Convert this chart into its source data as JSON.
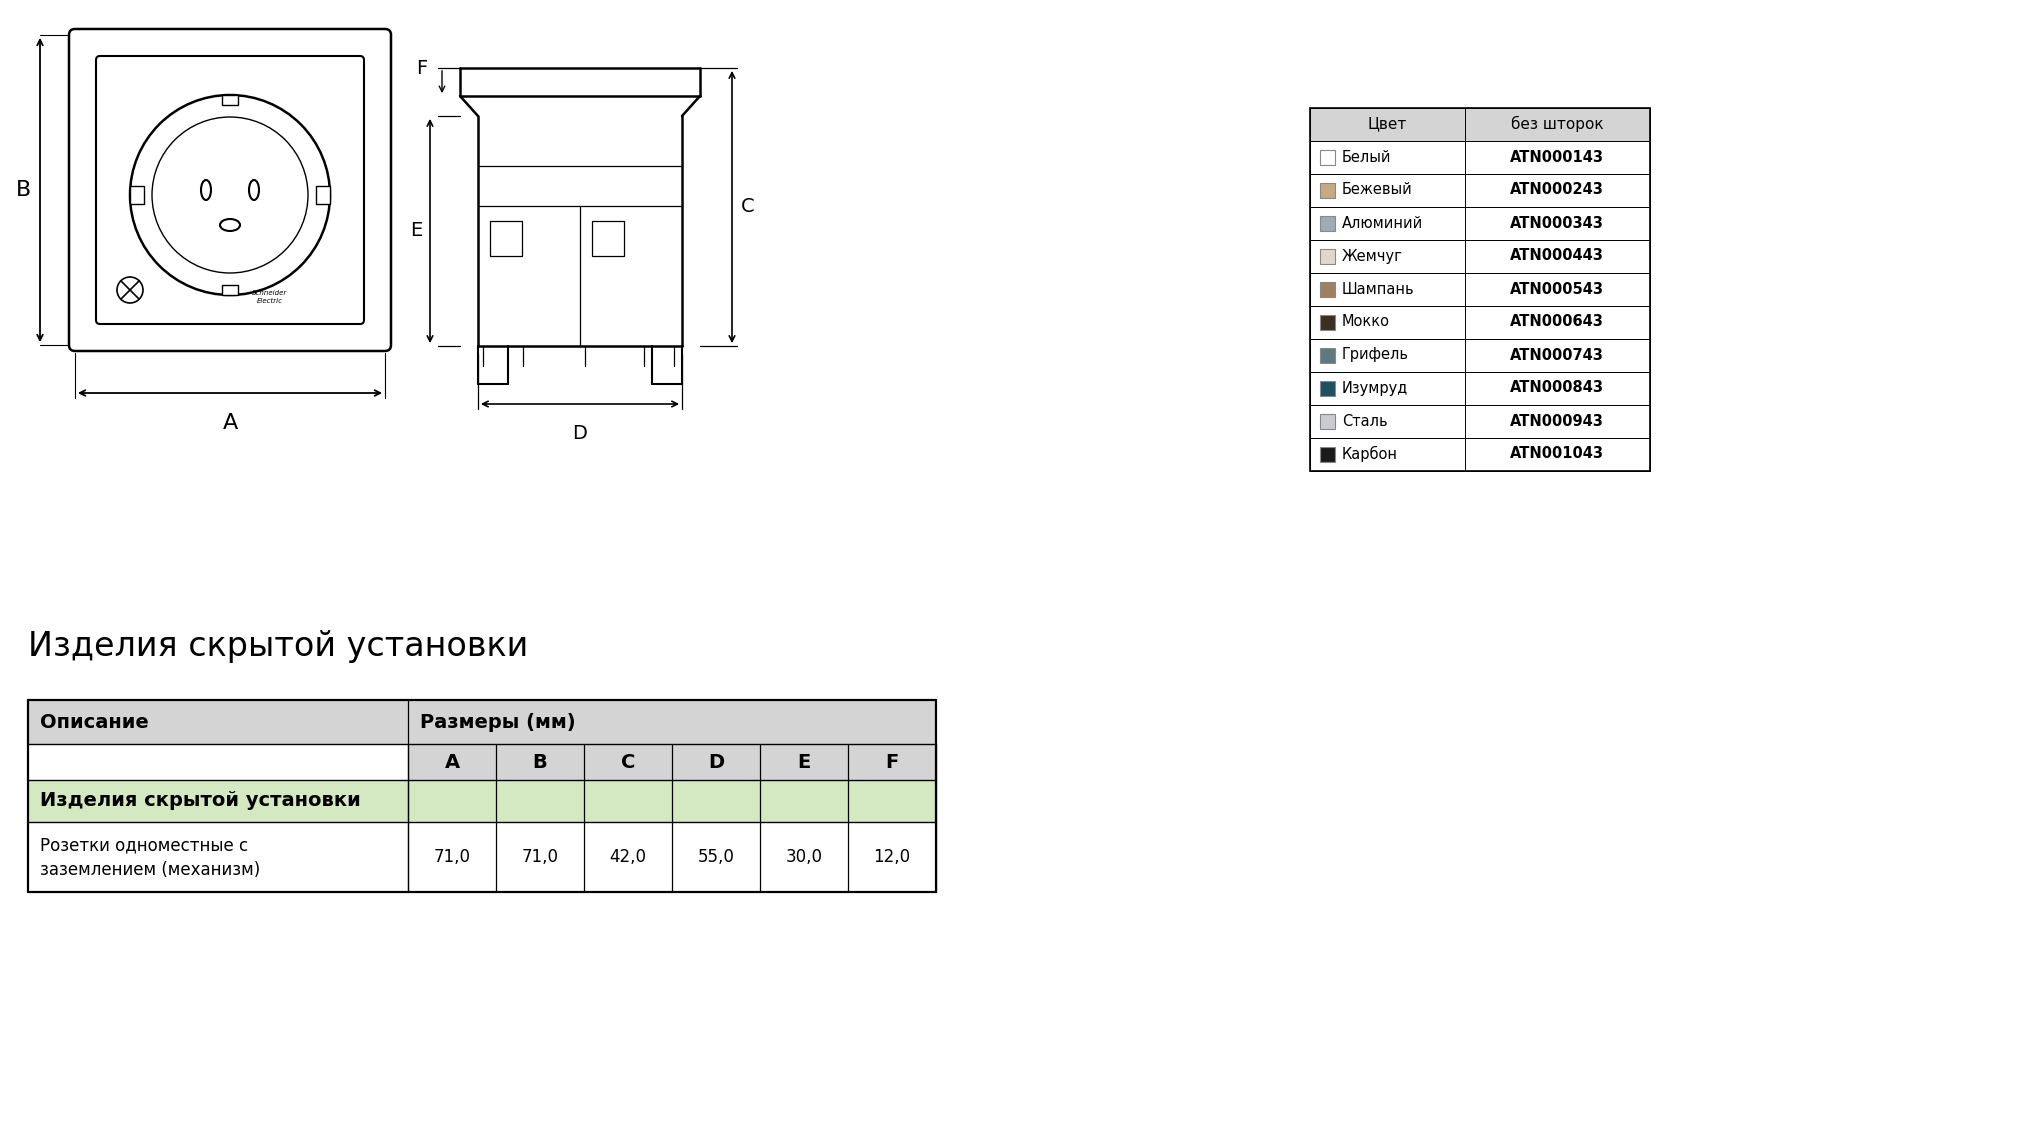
{
  "bg_color": "#ffffff",
  "section_title": "Изделия скрытой установки",
  "table_header_col1": "Описание",
  "table_header_col2": "Размеры (мм)",
  "table_subheaders": [
    "A",
    "B",
    "C",
    "D",
    "E",
    "F"
  ],
  "table_group_row": "Изделия скрытой установки",
  "table_data_row": {
    "description": "Розетки одноместные с\nзаземлением (механизм)",
    "values": [
      "71,0",
      "71,0",
      "42,0",
      "55,0",
      "30,0",
      "12,0"
    ]
  },
  "color_table_header_bg": "#d4d4d4",
  "color_table_group_bg": "#d4e8c2",
  "color_table_subheader_bg": "#d4d4d4",
  "color_table_border": "#000000",
  "product_table": {
    "header": [
      "Цвет",
      "без шторок"
    ],
    "header_bg": "#d4d4d4",
    "rows": [
      {
        "color_name": "Белый",
        "code": "ATN000143",
        "swatch": "#ffffff",
        "swatch_border": "#888888"
      },
      {
        "color_name": "Бежевый",
        "code": "ATN000243",
        "swatch": "#c8a882",
        "swatch_border": "#888888"
      },
      {
        "color_name": "Алюминий",
        "code": "ATN000343",
        "swatch": "#9eaab4",
        "swatch_border": "#888888"
      },
      {
        "color_name": "Жемчуг",
        "code": "ATN000443",
        "swatch": "#e0d8c8",
        "swatch_border": "#888888"
      },
      {
        "color_name": "Шампань",
        "code": "ATN000543",
        "swatch": "#a08060",
        "swatch_border": "#888888"
      },
      {
        "color_name": "Мокко",
        "code": "ATN000643",
        "swatch": "#3a3020",
        "swatch_border": "#888888"
      },
      {
        "color_name": "Грифель",
        "code": "ATN000743",
        "swatch": "#607880",
        "swatch_border": "#888888"
      },
      {
        "color_name": "Изумруд",
        "code": "ATN000843",
        "swatch": "#1e5060",
        "swatch_border": "#888888"
      },
      {
        "color_name": "Сталь",
        "code": "ATN000943",
        "swatch": "#c8ccd0",
        "swatch_border": "#888888"
      },
      {
        "color_name": "Карбон",
        "code": "ATN001043",
        "swatch": "#1a1a1a",
        "swatch_border": "#888888"
      }
    ]
  }
}
